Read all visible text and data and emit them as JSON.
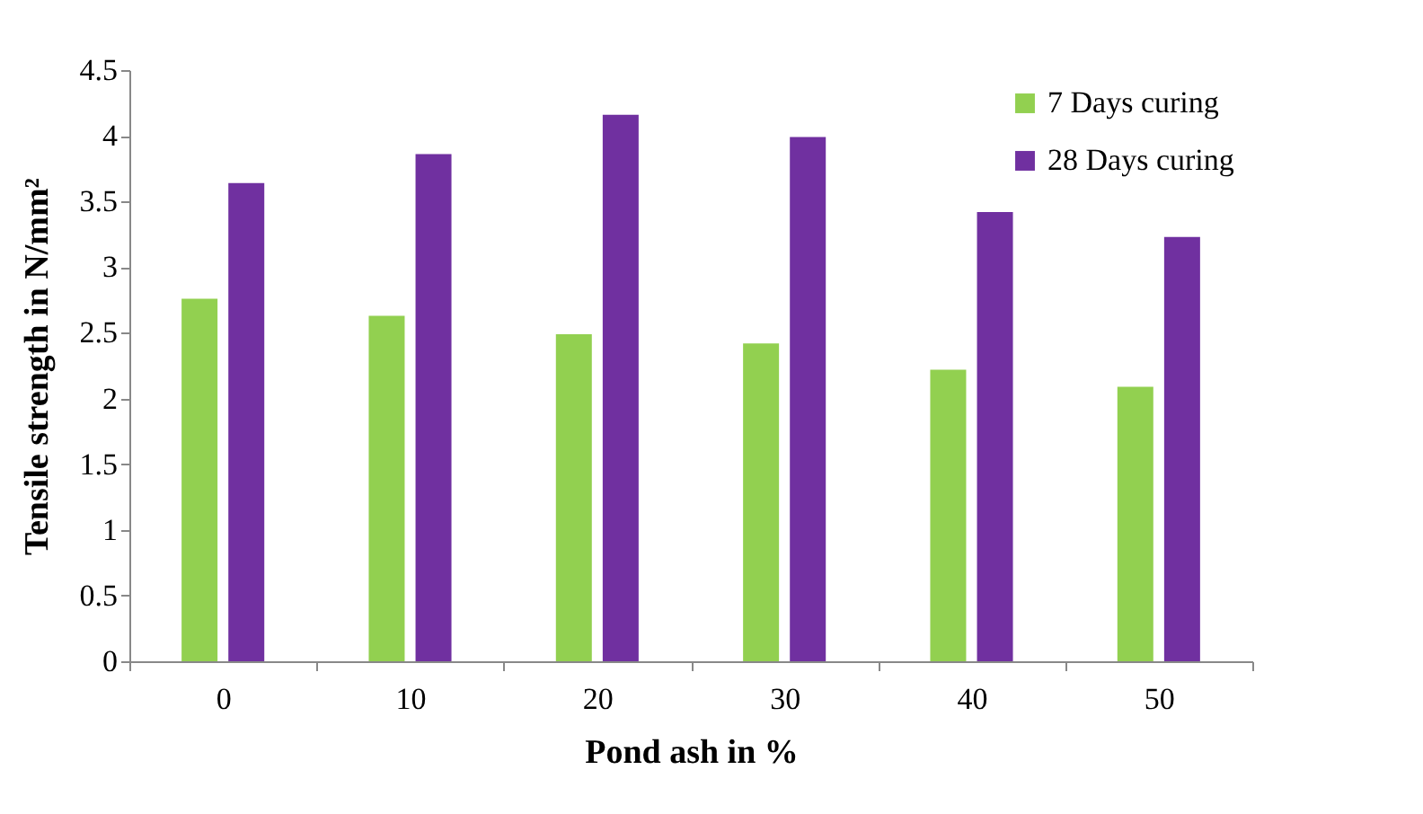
{
  "chart_data": {
    "type": "bar",
    "xlabel": "Pond ash in %",
    "ylabel": "Tensile strength in N/mm²",
    "categories": [
      "0",
      "10",
      "20",
      "30",
      "40",
      "50"
    ],
    "series": [
      {
        "name": "7 Days curing",
        "color": "#92d050",
        "values": [
          2.76,
          2.63,
          2.49,
          2.42,
          2.22,
          2.09
        ]
      },
      {
        "name": "28 Days curing",
        "color": "#7030a0",
        "values": [
          3.64,
          3.86,
          4.16,
          3.99,
          3.42,
          3.23
        ]
      }
    ],
    "ylim": [
      0,
      4.5
    ],
    "yticks": [
      0,
      0.5,
      1,
      1.5,
      2,
      2.5,
      3,
      3.5,
      4,
      4.5
    ],
    "grid": false,
    "legend": "top right"
  }
}
